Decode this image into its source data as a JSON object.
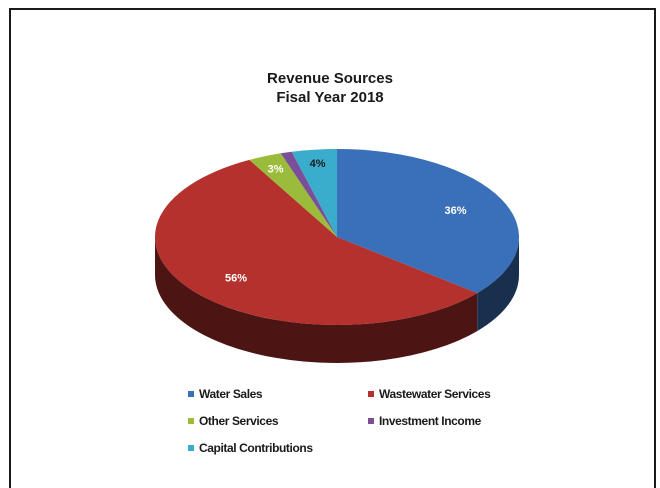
{
  "chart_data": {
    "type": "pie",
    "title": "Revenue Sources",
    "subtitle": "Fisal Year 2018",
    "slices": [
      {
        "name": "Water Sales",
        "value": 36,
        "label": "36%",
        "color": "#3a6fba"
      },
      {
        "name": "Wastewater Services",
        "value": 56,
        "label": "56%",
        "color": "#b5312d"
      },
      {
        "name": "Other Services",
        "value": 3,
        "label": "3%",
        "color": "#9bbb3b"
      },
      {
        "name": "Investment Income",
        "value": 1,
        "label": "",
        "color": "#7a4f9a"
      },
      {
        "name": "Capital Contributions",
        "value": 4,
        "label": "4%",
        "color": "#3aaccc"
      }
    ],
    "legend": {
      "position": "bottom"
    },
    "style": "3d"
  }
}
